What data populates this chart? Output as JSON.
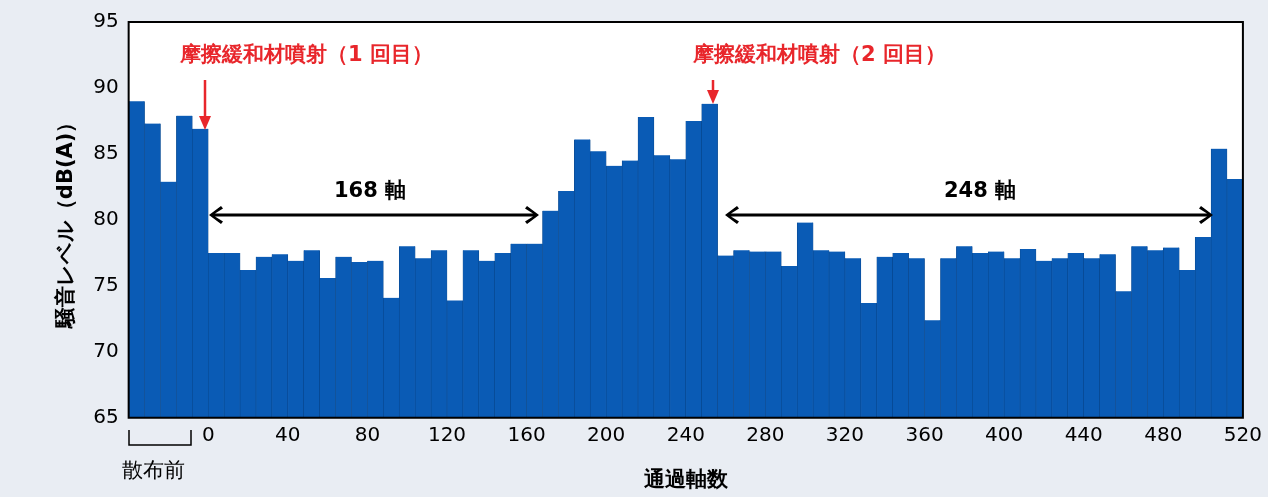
{
  "chart_data": {
    "type": "histogram",
    "xlabel": "通過軸数",
    "ylabel": "騒音レベル（dB(A)）",
    "bins": [
      -40,
      -32,
      -24,
      -16,
      -8,
      0,
      8,
      16,
      24,
      32,
      40,
      48,
      56,
      64,
      72,
      80,
      88,
      96,
      104,
      112,
      120,
      128,
      136,
      144,
      152,
      160,
      168,
      176,
      184,
      192,
      200,
      208,
      216,
      224,
      232,
      240,
      248,
      256,
      264,
      272,
      280,
      288,
      296,
      304,
      312,
      320,
      328,
      336,
      344,
      352,
      360,
      368,
      376,
      384,
      392,
      400,
      408,
      416,
      424,
      432,
      440,
      448,
      456,
      464,
      472,
      480,
      488,
      496,
      504,
      512,
      520
    ],
    "values": [
      89.0,
      87.3,
      82.9,
      87.9,
      86.9,
      77.5,
      77.5,
      76.2,
      77.2,
      77.4,
      76.9,
      77.7,
      75.6,
      77.2,
      76.8,
      76.9,
      74.1,
      78.0,
      77.1,
      77.7,
      73.9,
      77.7,
      76.9,
      77.5,
      78.2,
      78.2,
      80.7,
      82.2,
      86.1,
      85.2,
      84.1,
      84.5,
      87.8,
      84.9,
      84.6,
      87.5,
      88.8,
      77.3,
      77.7,
      77.6,
      77.6,
      76.5,
      79.8,
      77.7,
      77.6,
      77.1,
      73.7,
      77.2,
      77.5,
      77.1,
      72.4,
      77.1,
      78.0,
      77.5,
      77.6,
      77.1,
      77.8,
      76.9,
      77.1,
      77.5,
      77.1,
      77.4,
      74.6,
      78.0,
      77.7,
      77.9,
      76.2,
      78.7,
      85.4,
      83.1
    ],
    "color": "#0a5bb5",
    "xlim": [
      -40,
      520
    ],
    "xticks": [
      0,
      40,
      80,
      120,
      160,
      200,
      240,
      280,
      320,
      360,
      400,
      440,
      480,
      520
    ],
    "ylim": [
      65,
      95
    ],
    "yticks": [
      65,
      70,
      75,
      80,
      85,
      90,
      95
    ],
    "annotations": [
      "摩擦緩和材噴射（1 回目）",
      "摩擦緩和材噴射（2 回目）",
      "168 軸",
      "248 軸",
      "散布前"
    ]
  }
}
